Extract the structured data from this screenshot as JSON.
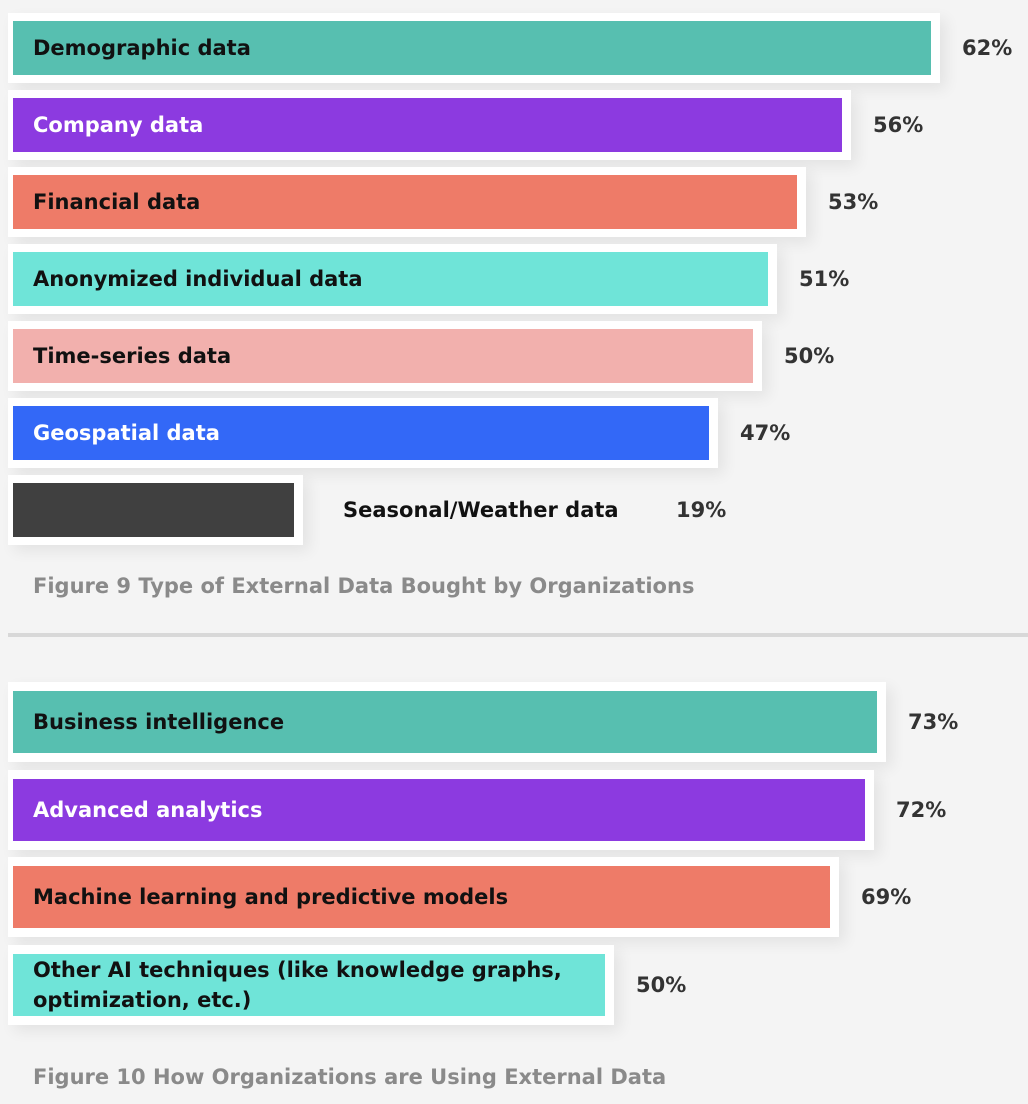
{
  "chart_data": [
    {
      "type": "bar",
      "orientation": "horizontal",
      "title": "Figure 9 Type of External Data Bought by Organizations",
      "categories": [
        "Demographic data",
        "Company data",
        "Financial data",
        "Anonymized individual data",
        "Time-series data",
        "Geospatial data",
        "Seasonal/Weather data"
      ],
      "values": [
        62,
        56,
        53,
        51,
        50,
        47,
        19
      ],
      "value_labels": [
        "62%",
        "56%",
        "53%",
        "51%",
        "50%",
        "47%",
        "19%"
      ],
      "colors": [
        "#57bfb0",
        "#8c3ae0",
        "#ee7b68",
        "#6fe4d8",
        "#f2b0ad",
        "#3368f7",
        "#404040"
      ],
      "label_colors": [
        "#111111",
        "#ffffff",
        "#111111",
        "#111111",
        "#111111",
        "#ffffff",
        "#111111"
      ],
      "label_outside": [
        false,
        false,
        false,
        false,
        false,
        false,
        true
      ],
      "grid": false
    },
    {
      "type": "bar",
      "orientation": "horizontal",
      "title": "Figure 10 How Organizations are Using External Data",
      "categories": [
        "Business intelligence",
        "Advanced analytics",
        "Machine learning and predictive models",
        "Other AI techniques (like knowledge graphs, optimization, etc.)"
      ],
      "values": [
        73,
        72,
        69,
        50
      ],
      "value_labels": [
        "73%",
        "72%",
        "69%",
        "50%"
      ],
      "colors": [
        "#57bfb0",
        "#8c3ae0",
        "#ee7b68",
        "#6fe4d8"
      ],
      "label_colors": [
        "#111111",
        "#ffffff",
        "#111111",
        "#111111"
      ],
      "label_outside": [
        false,
        false,
        false,
        false
      ],
      "grid": false
    }
  ]
}
